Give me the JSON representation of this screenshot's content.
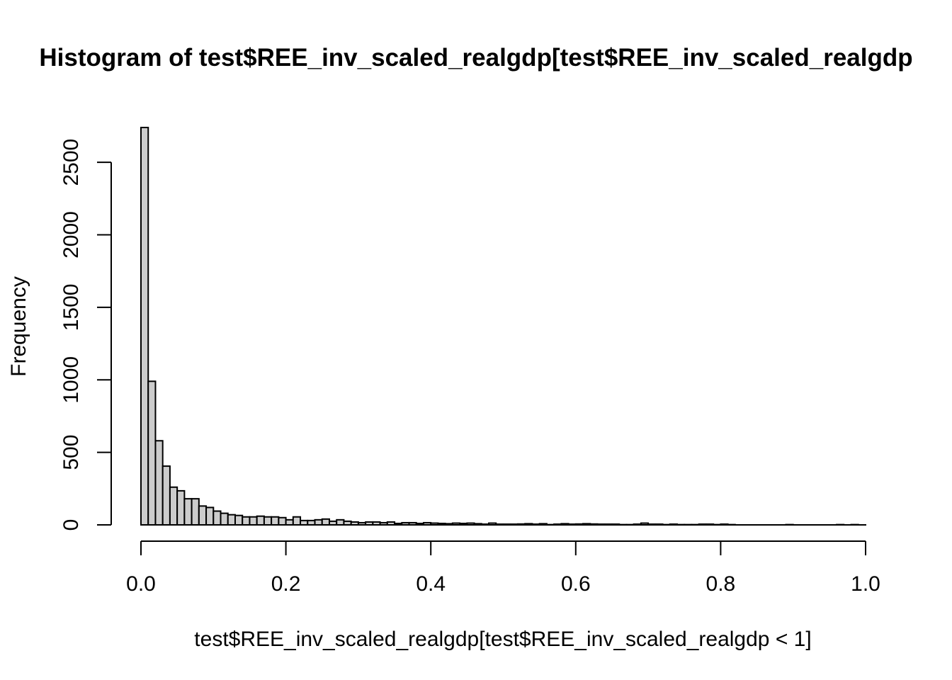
{
  "chart_data": {
    "type": "bar",
    "title": "Histogram of test$REE_inv_scaled_realgdp[test$REE_inv_scaled_realgdp",
    "xlabel": "test$REE_inv_scaled_realgdp[test$REE_inv_scaled_realgdp < 1]",
    "ylabel": "Frequency",
    "xlim": [
      0,
      1
    ],
    "ylim": [
      0,
      2740
    ],
    "bin_start": 0,
    "bin_width": 0.01,
    "values": [
      2740,
      990,
      580,
      405,
      260,
      235,
      180,
      180,
      130,
      120,
      95,
      80,
      70,
      65,
      55,
      55,
      60,
      55,
      55,
      50,
      35,
      55,
      30,
      30,
      35,
      40,
      25,
      35,
      25,
      20,
      15,
      20,
      20,
      15,
      20,
      10,
      15,
      15,
      10,
      15,
      12,
      10,
      8,
      12,
      10,
      12,
      8,
      5,
      12,
      5,
      5,
      5,
      6,
      8,
      5,
      8,
      2,
      5,
      8,
      5,
      6,
      8,
      6,
      5,
      5,
      5,
      2,
      2,
      5,
      12,
      5,
      5,
      2,
      5,
      2,
      2,
      2,
      5,
      5,
      2,
      5,
      2,
      0,
      0,
      0,
      0,
      0,
      0,
      0,
      2,
      0,
      0,
      0,
      0,
      0,
      0,
      2,
      0,
      2,
      0
    ],
    "x_ticks": [
      "0.0",
      "0.2",
      "0.4",
      "0.6",
      "0.8",
      "1.0"
    ],
    "y_ticks": [
      "0",
      "500",
      "1000",
      "1500",
      "2000",
      "2500"
    ],
    "grid": false
  }
}
